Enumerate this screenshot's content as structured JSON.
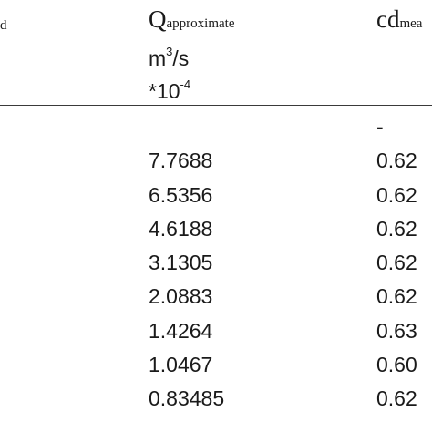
{
  "header": {
    "col1_fragment": "d",
    "q_symbol": "Q",
    "q_subscript": "approximate",
    "q_unit_base": "m",
    "q_unit_exp": "3",
    "q_unit_rest": "/s",
    "q_scale_prefix": "*10",
    "q_scale_exp": "-4",
    "cd_symbol": "cd",
    "cd_subscript": "mea"
  },
  "rows": [
    {
      "q": "",
      "cd": "-"
    },
    {
      "q": "7.7688",
      "cd": "0.62"
    },
    {
      "q": "6.5356",
      "cd": "0.62"
    },
    {
      "q": "4.6188",
      "cd": "0.62"
    },
    {
      "q": "3.1305",
      "cd": "0.62"
    },
    {
      "q": "2.0883",
      "cd": "0.62"
    },
    {
      "q": "1.4264",
      "cd": "0.63"
    },
    {
      "q": "1.0467",
      "cd": "0.60"
    },
    {
      "q": "0.83485",
      "cd": "0.62"
    }
  ]
}
